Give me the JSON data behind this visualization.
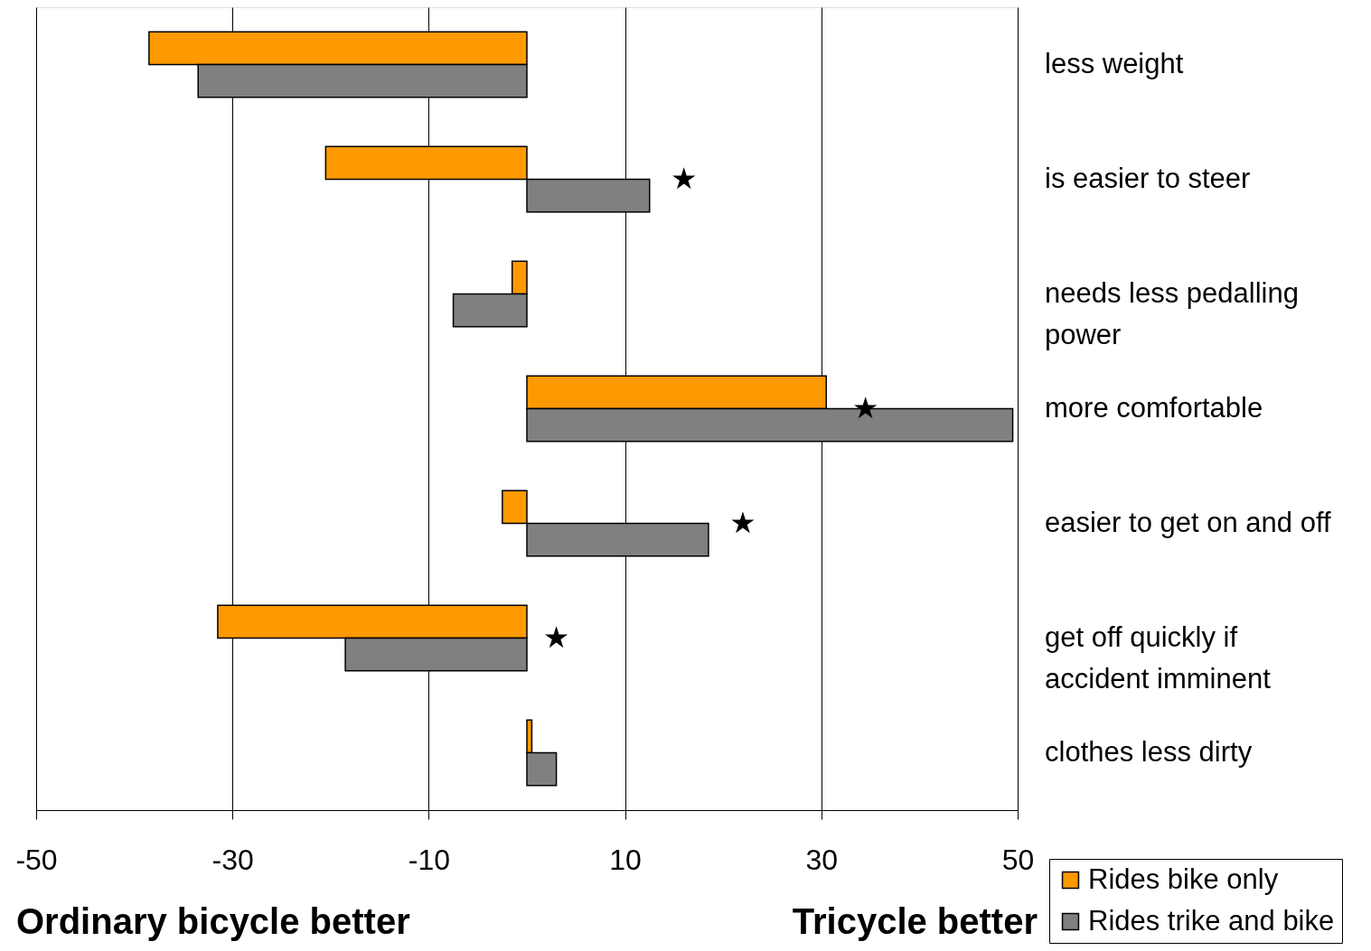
{
  "chart_data": {
    "type": "bar",
    "orientation": "horizontal",
    "categories": [
      "less weight",
      "is easier to steer",
      "needs less pedalling\npower",
      "more comfortable",
      "easier to get on and off",
      "get off quickly if\naccident imminent",
      "clothes less dirty"
    ],
    "series": [
      {
        "name": "Rides bike only",
        "color": "#ff9900",
        "values": [
          -38.5,
          -20.5,
          -1.5,
          30.5,
          -2.5,
          -31.5,
          0.5
        ]
      },
      {
        "name": "Rides trike and bike",
        "color": "#808080",
        "values": [
          -33.5,
          12.5,
          -7.5,
          49.5,
          18.5,
          -18.5,
          3
        ]
      },
      {
        "type": "scatter",
        "marker": "star",
        "color": "#000000",
        "values": [
          null,
          16,
          null,
          34.5,
          22,
          3,
          null
        ]
      }
    ],
    "xlim": [
      -50,
      50
    ],
    "xticks": [
      -50,
      -30,
      -10,
      10,
      30,
      50
    ],
    "xlabel": "Ordinary bicycle better",
    "annotations": [
      "Tricycle better"
    ],
    "grid": "x",
    "legend": "bottom right"
  }
}
